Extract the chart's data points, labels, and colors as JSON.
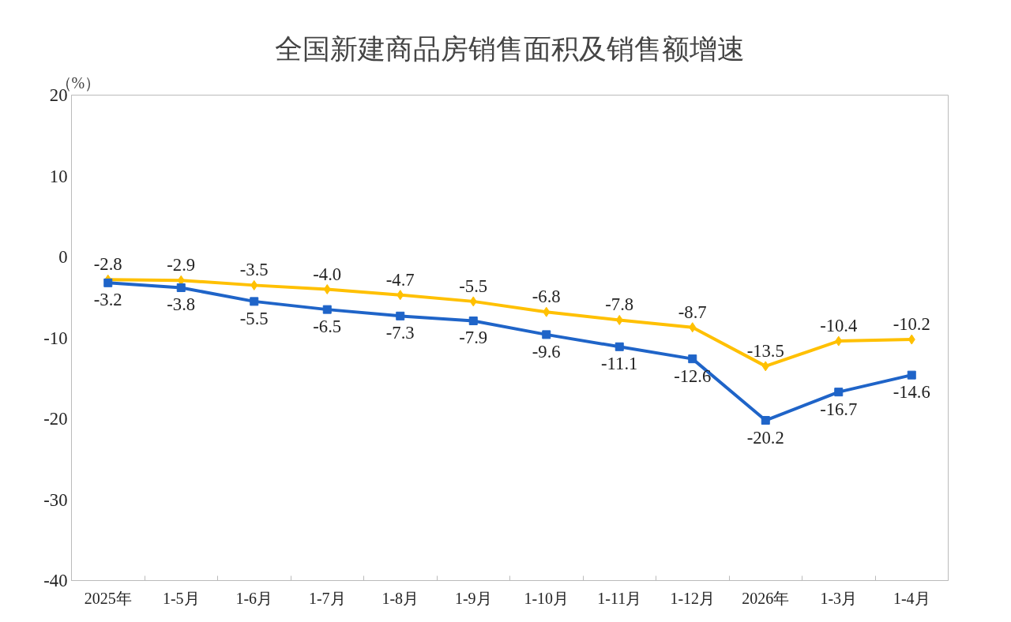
{
  "chart_data": {
    "type": "line",
    "title": "全国新建商品房销售面积及销售额增速",
    "ylabel": "（%）",
    "categories": [
      "2025年",
      "1-5月",
      "1-6月",
      "1-7月",
      "1-8月",
      "1-9月",
      "1-10月",
      "1-11月",
      "1-12月",
      "2026年",
      "1-3月",
      "1-4月"
    ],
    "series": [
      {
        "color": "#ffc000",
        "marker": "diamond",
        "values": [
          -2.8,
          -2.9,
          -3.5,
          -4.0,
          -4.7,
          -5.5,
          -6.8,
          -7.8,
          -8.7,
          -13.5,
          -10.4,
          -10.2
        ],
        "value_labels": [
          "-2.8",
          "-2.9",
          "-3.5",
          "-4.0",
          "-4.7",
          "-5.5",
          "-6.8",
          "-7.8",
          "-8.7",
          "-13.5",
          "-10.4",
          "-10.2"
        ]
      },
      {
        "color": "#1f64c8",
        "marker": "square",
        "values": [
          -3.2,
          -3.8,
          -5.5,
          -6.5,
          -7.3,
          -7.9,
          -9.6,
          -11.1,
          -12.6,
          -20.2,
          -16.7,
          -14.6
        ],
        "value_labels": [
          "-3.2",
          "-3.8",
          "-5.5",
          "-6.5",
          "-7.3",
          "-7.9",
          "-9.6",
          "-11.1",
          "-12.6",
          "-20.2",
          "-16.7",
          "-14.6"
        ]
      }
    ],
    "ylim": [
      -40,
      20
    ],
    "yticks": [
      -40,
      -30,
      -20,
      -10,
      0,
      10,
      20
    ],
    "grid": false
  }
}
